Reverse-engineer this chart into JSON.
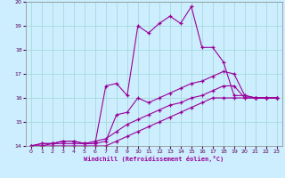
{
  "xlabel": "Windchill (Refroidissement éolien,°C)",
  "background_color": "#cceeff",
  "line_color": "#990099",
  "grid_color": "#aadddd",
  "xlim": [
    -0.5,
    23.5
  ],
  "ylim": [
    14,
    20
  ],
  "xticks": [
    0,
    1,
    2,
    3,
    4,
    5,
    6,
    7,
    8,
    9,
    10,
    11,
    12,
    13,
    14,
    15,
    16,
    17,
    18,
    19,
    20,
    21,
    22,
    23
  ],
  "yticks": [
    14,
    15,
    16,
    17,
    18,
    19,
    20
  ],
  "series": [
    {
      "x": [
        0,
        1,
        2,
        3,
        4,
        5,
        6,
        7,
        8,
        9,
        10,
        11,
        12,
        13,
        14,
        15,
        16,
        17,
        18,
        19,
        20,
        21,
        22,
        23
      ],
      "y": [
        14.0,
        14.1,
        14.1,
        14.2,
        14.2,
        14.1,
        14.1,
        16.5,
        16.6,
        16.1,
        19.0,
        18.7,
        19.1,
        19.4,
        19.1,
        19.8,
        18.1,
        18.1,
        17.5,
        16.1,
        16.1,
        16.0,
        16.0,
        16.0
      ]
    },
    {
      "x": [
        0,
        1,
        2,
        3,
        4,
        5,
        6,
        7,
        8,
        9,
        10,
        11,
        12,
        13,
        14,
        15,
        16,
        17,
        18,
        19,
        20,
        21,
        22,
        23
      ],
      "y": [
        14.0,
        14.1,
        14.1,
        14.2,
        14.2,
        14.1,
        14.1,
        14.2,
        15.3,
        15.4,
        16.0,
        15.8,
        16.0,
        16.2,
        16.4,
        16.6,
        16.7,
        16.9,
        17.1,
        17.0,
        16.1,
        16.0,
        16.0,
        16.0
      ]
    },
    {
      "x": [
        0,
        1,
        2,
        3,
        4,
        5,
        6,
        7,
        8,
        9,
        10,
        11,
        12,
        13,
        14,
        15,
        16,
        17,
        18,
        19,
        20,
        21,
        22,
        23
      ],
      "y": [
        14.0,
        14.0,
        14.1,
        14.1,
        14.1,
        14.1,
        14.2,
        14.3,
        14.6,
        14.9,
        15.1,
        15.3,
        15.5,
        15.7,
        15.8,
        16.0,
        16.1,
        16.3,
        16.5,
        16.5,
        16.0,
        16.0,
        16.0,
        16.0
      ]
    },
    {
      "x": [
        0,
        1,
        2,
        3,
        4,
        5,
        6,
        7,
        8,
        9,
        10,
        11,
        12,
        13,
        14,
        15,
        16,
        17,
        18,
        19,
        20,
        21,
        22,
        23
      ],
      "y": [
        14.0,
        14.0,
        14.0,
        14.0,
        14.0,
        14.0,
        14.0,
        14.0,
        14.2,
        14.4,
        14.6,
        14.8,
        15.0,
        15.2,
        15.4,
        15.6,
        15.8,
        16.0,
        16.0,
        16.0,
        16.0,
        16.0,
        16.0,
        16.0
      ]
    }
  ]
}
